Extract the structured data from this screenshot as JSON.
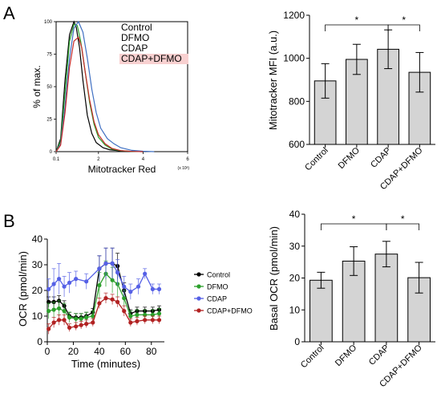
{
  "panels": {
    "a": "A",
    "b": "B"
  },
  "chart_data": [
    {
      "type": "line",
      "xlabel": "Mitotracker Red",
      "ylabel": "% of max.",
      "x_scale_note": "(x 10³)",
      "xlim": [
        0.1,
        6
      ],
      "ylim": [
        0,
        100
      ],
      "x_ticks": [
        {
          "v": 0.1,
          "label": "0.1"
        },
        {
          "v": 2,
          "label": "2"
        },
        {
          "v": 4,
          "label": "4"
        },
        {
          "v": 6,
          "label": "6"
        }
      ],
      "y_ticks": [
        {
          "v": 0,
          "label": "0"
        },
        {
          "v": 25,
          "label": "25"
        },
        {
          "v": 50,
          "label": "50"
        },
        {
          "v": 75,
          "label": "75"
        },
        {
          "v": 100,
          "label": "100"
        }
      ],
      "legend": "top-right",
      "series": [
        {
          "name": "Control",
          "color": "#000000",
          "x": [
            0.1,
            0.3,
            0.5,
            0.7,
            0.9,
            1.0,
            1.15,
            1.3,
            1.5,
            1.7,
            1.9,
            2.2,
            2.5,
            3.0,
            3.5,
            4.0
          ],
          "y": [
            0,
            10,
            55,
            90,
            100,
            96,
            80,
            55,
            28,
            14,
            7,
            3,
            1.5,
            0.5,
            0.2,
            0
          ]
        },
        {
          "name": "DFMO",
          "color": "#2ca02c",
          "x": [
            0.1,
            0.3,
            0.5,
            0.7,
            0.9,
            1.05,
            1.2,
            1.4,
            1.6,
            1.8,
            2.0,
            2.3,
            2.6,
            3.0,
            3.5,
            4.0
          ],
          "y": [
            0,
            8,
            45,
            85,
            98,
            97,
            85,
            62,
            38,
            21,
            11,
            5,
            2,
            0.7,
            0.2,
            0
          ]
        },
        {
          "name": "CDAP",
          "color": "#3f6fc2",
          "x": [
            0.1,
            0.3,
            0.5,
            0.7,
            0.9,
            1.1,
            1.3,
            1.5,
            1.7,
            1.9,
            2.1,
            2.4,
            2.7,
            3.0,
            3.5,
            4.0,
            4.5
          ],
          "y": [
            0,
            6,
            35,
            72,
            95,
            100,
            92,
            72,
            48,
            30,
            18,
            10,
            6,
            3,
            1,
            0.3,
            0
          ]
        },
        {
          "name": "CDAP+DFMO",
          "color": "#c62828",
          "x": [
            0.1,
            0.3,
            0.5,
            0.7,
            0.9,
            1.1,
            1.25,
            1.4,
            1.6,
            1.8,
            2.0,
            2.3,
            2.6,
            3.0,
            3.5,
            4.0
          ],
          "y": [
            0,
            5,
            30,
            65,
            85,
            88,
            80,
            62,
            40,
            23,
            13,
            6,
            2.5,
            0.8,
            0.2,
            0
          ]
        }
      ]
    },
    {
      "type": "bar",
      "ylabel": "Mitotracker MFI (a.u.)",
      "categories": [
        "Control",
        "DFMO",
        "CDAP",
        "CDAP+DFMO"
      ],
      "values": [
        895,
        995,
        1042,
        935
      ],
      "errors": [
        80,
        70,
        90,
        92
      ],
      "ylim": [
        600,
        1200
      ],
      "y_ticks": [
        600,
        800,
        1000,
        1200
      ],
      "bar_color": "#d4d4d4",
      "significance": [
        {
          "from": 0,
          "to": 2,
          "label": "*"
        },
        {
          "from": 2,
          "to": 3,
          "label": "*"
        }
      ]
    },
    {
      "type": "line",
      "xlabel": "Time (minutes)",
      "ylabel": "OCR (pmol/min)",
      "xlim": [
        0,
        90
      ],
      "ylim": [
        0,
        40
      ],
      "x_ticks": [
        0,
        20,
        40,
        60,
        80
      ],
      "y_ticks": [
        0,
        10,
        20,
        30,
        40
      ],
      "legend": "right",
      "series": [
        {
          "name": "Control",
          "color": "#000000",
          "x": [
            1,
            5,
            9,
            13,
            17,
            22,
            26,
            30,
            35,
            40,
            45,
            50,
            54,
            59,
            64,
            69,
            75,
            81,
            86
          ],
          "y": [
            15.5,
            15.5,
            16,
            14,
            10,
            9.5,
            9.5,
            10,
            11.5,
            28.5,
            30.5,
            30.5,
            29.5,
            20,
            11,
            12,
            12,
            12,
            12.5
          ],
          "err": [
            2,
            2,
            2,
            2,
            1.5,
            1.5,
            1.5,
            1.5,
            1.5,
            5,
            6,
            6,
            5,
            3,
            1.5,
            1.5,
            1.5,
            1.5,
            1.5
          ]
        },
        {
          "name": "DFMO",
          "color": "#2ca02c",
          "x": [
            1,
            5,
            9,
            13,
            17,
            22,
            26,
            30,
            35,
            40,
            45,
            50,
            54,
            59,
            64,
            69,
            75,
            81,
            86
          ],
          "y": [
            12,
            12.5,
            13,
            12,
            9.5,
            9,
            9,
            9.5,
            10,
            22,
            26.5,
            24,
            22.5,
            17,
            10,
            10.5,
            10.5,
            10.5,
            11
          ],
          "err": [
            3,
            3,
            3,
            3,
            2,
            2,
            2,
            2,
            2,
            5,
            5,
            5,
            5,
            3,
            2,
            2,
            2,
            2,
            2
          ]
        },
        {
          "name": "CDAP",
          "color": "#5560e6",
          "x": [
            1,
            5,
            9,
            13,
            17,
            22,
            30,
            40,
            45,
            50,
            54,
            59,
            64,
            70,
            75,
            81,
            86
          ],
          "y": [
            20.5,
            22.5,
            24.5,
            21.5,
            23,
            24.5,
            23.5,
            28.5,
            30.5,
            30.5,
            27,
            21.5,
            19.5,
            21.5,
            26.5,
            20.5,
            20.5
          ],
          "err": [
            4,
            6,
            6,
            4,
            4,
            3,
            3,
            5,
            6,
            6,
            5,
            4,
            3,
            3,
            2,
            2,
            2
          ]
        },
        {
          "name": "CDAP+DFMO",
          "color": "#b22222",
          "x": [
            1,
            5,
            9,
            13,
            17,
            22,
            26,
            30,
            35,
            40,
            45,
            50,
            54,
            59,
            64,
            69,
            75,
            81,
            86
          ],
          "y": [
            5,
            7.5,
            8.5,
            8.5,
            5.5,
            6,
            6.5,
            7,
            7.5,
            15,
            17,
            16.5,
            15.5,
            12,
            7.5,
            8,
            8.5,
            8.5,
            8.5
          ],
          "err": [
            2,
            2,
            2,
            2,
            1.5,
            1.5,
            1.5,
            1.5,
            1.5,
            2,
            2,
            2,
            2,
            2,
            1.5,
            1.5,
            1.5,
            1.5,
            1.5
          ]
        }
      ]
    },
    {
      "type": "bar",
      "ylabel": "Basal OCR (pmol/min)",
      "categories": [
        "Control",
        "DFMO",
        "CDAP",
        "CDAP+DFMO"
      ],
      "values": [
        19.3,
        25.3,
        27.5,
        20.1
      ],
      "errors": [
        2.5,
        4.5,
        4.0,
        4.8
      ],
      "ylim": [
        0,
        40
      ],
      "y_ticks": [
        0,
        10,
        20,
        30,
        40
      ],
      "bar_color": "#d4d4d4",
      "significance": [
        {
          "from": 0,
          "to": 2,
          "label": "*"
        },
        {
          "from": 2,
          "to": 3,
          "label": "*"
        }
      ]
    }
  ]
}
